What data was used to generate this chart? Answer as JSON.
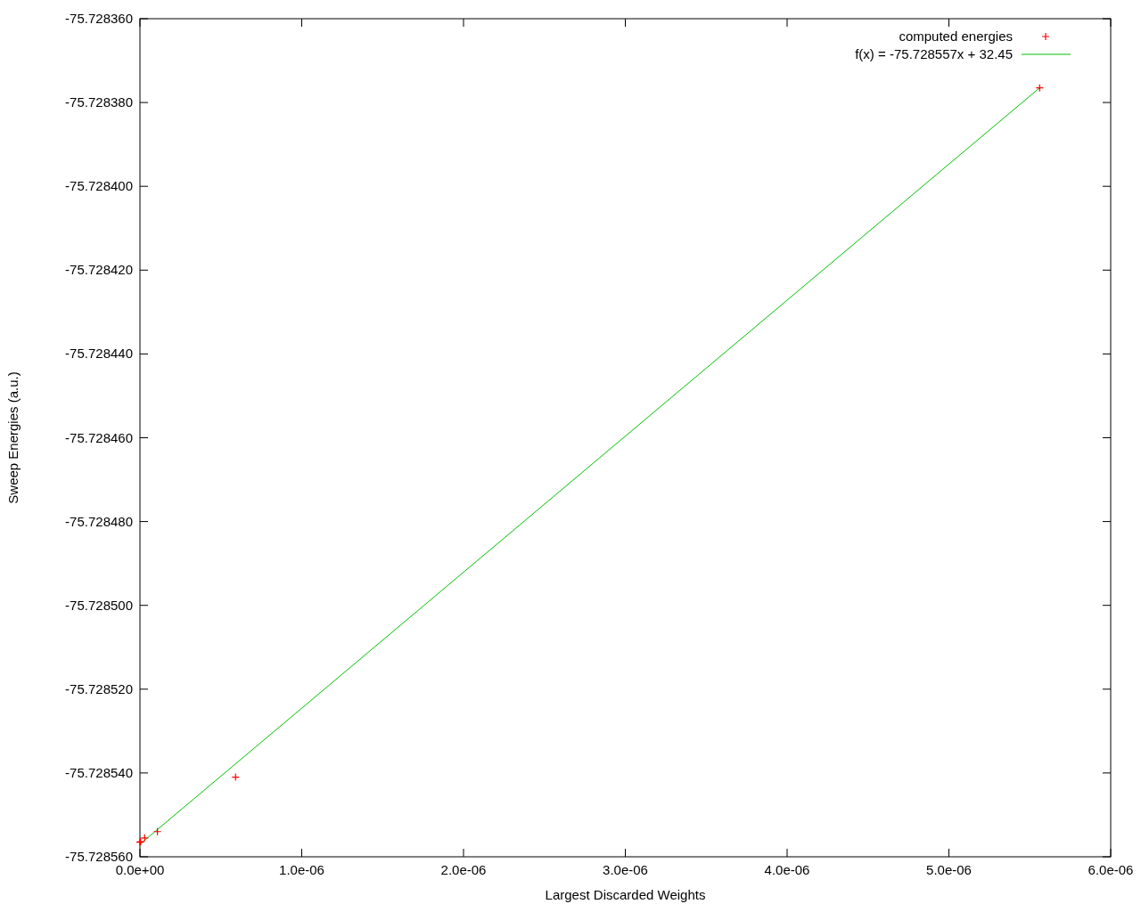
{
  "chart_data": {
    "type": "scatter",
    "xlabel": "Largest Discarded Weights",
    "ylabel": "Sweep Energies (a.u.)",
    "series": [
      {
        "name": "computed energies",
        "color": "#ff0000",
        "marker": "cross",
        "x": [
          0.0,
          4e-09,
          2.9e-08,
          1.08e-07,
          5.91e-07,
          5.561e-06
        ],
        "values": [
          -75.7285565,
          -75.7285564,
          -75.7285555,
          -75.728554,
          -75.728541,
          -75.7283765
        ]
      },
      {
        "name": "f(x) = -75.728557x + 32.45",
        "type": "line",
        "color": "#00c000",
        "marker": "none",
        "line_style": "solid",
        "x": [
          0.0,
          5.561e-06
        ],
        "values": [
          -75.728557,
          -75.7283765
        ]
      }
    ],
    "xlim": [
      0,
      6e-06
    ],
    "xticks": [
      {
        "value": 0,
        "label": "0.0e+00"
      },
      {
        "value": 1e-06,
        "label": "1.0e-06"
      },
      {
        "value": 2e-06,
        "label": "2.0e-06"
      },
      {
        "value": 3e-06,
        "label": "3.0e-06"
      },
      {
        "value": 4e-06,
        "label": "4.0e-06"
      },
      {
        "value": 5e-06,
        "label": "5.0e-06"
      },
      {
        "value": 6e-06,
        "label": "6.0e-06"
      }
    ],
    "ylim": [
      -75.72856,
      -75.72836
    ],
    "yticks": [
      {
        "value": -75.72856,
        "label": "-75.728560"
      },
      {
        "value": -75.72854,
        "label": "-75.728540"
      },
      {
        "value": -75.72852,
        "label": "-75.728520"
      },
      {
        "value": -75.7285,
        "label": "-75.728500"
      },
      {
        "value": -75.72848,
        "label": "-75.728480"
      },
      {
        "value": -75.72846,
        "label": "-75.728460"
      },
      {
        "value": -75.72844,
        "label": "-75.728440"
      },
      {
        "value": -75.72842,
        "label": "-75.728420"
      },
      {
        "value": -75.7284,
        "label": "-75.728400"
      },
      {
        "value": -75.72838,
        "label": "-75.728380"
      },
      {
        "value": -75.72836,
        "label": "-75.728360"
      }
    ],
    "grid": false,
    "legend": "top right"
  }
}
